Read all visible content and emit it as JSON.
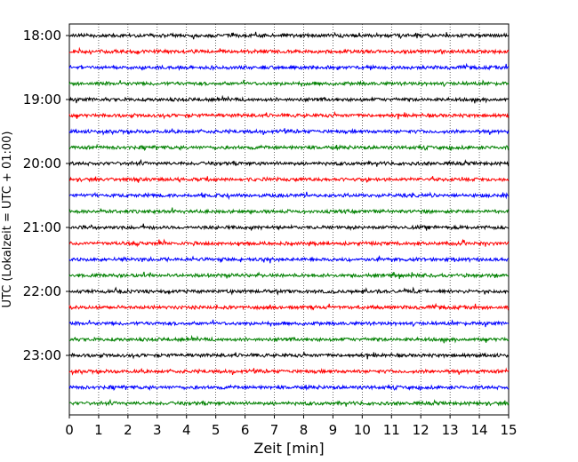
{
  "chart_data": {
    "type": "line",
    "title": "",
    "xlabel": "Zeit  [min]",
    "ylabel": "UTC (Lokalzeit = UTC + 01:00)",
    "xlim": [
      0,
      15
    ],
    "x_ticks": [
      "0",
      "1",
      "2",
      "3",
      "4",
      "5",
      "6",
      "7",
      "8",
      "9",
      "10",
      "11",
      "12",
      "13",
      "14",
      "15"
    ],
    "y_ticks": [
      "18:00",
      "19:00",
      "20:00",
      "21:00",
      "22:00",
      "23:00"
    ],
    "grid": "vertical dotted at each minute",
    "trace_interval_minutes": 15,
    "trace_count": 24,
    "trace_start": "18:00",
    "trace_end": "23:45",
    "trace_colors_cycle": [
      "#000000",
      "#ff0000",
      "#0000ff",
      "#008000"
    ]
  }
}
